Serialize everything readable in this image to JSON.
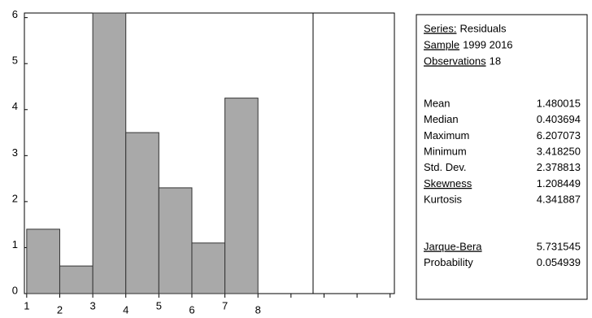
{
  "chart_data": {
    "type": "histogram",
    "bins": [
      1,
      2,
      3,
      4,
      5,
      6,
      7,
      8
    ],
    "values": [
      1.4,
      0.6,
      6.1,
      3.5,
      2.3,
      1.1,
      4.25
    ],
    "color": "#a9a9a9",
    "xlim": [
      0.93,
      12.13
    ],
    "xticks": [
      1,
      2,
      3,
      4,
      5,
      6,
      7,
      8
    ],
    "xminor_ticks": [
      9,
      10,
      11,
      12
    ],
    "ylim": [
      0,
      6.1
    ],
    "yticks": [
      0,
      1,
      2,
      3,
      4,
      5,
      6
    ]
  },
  "stats": {
    "header": [
      {
        "label": "Series:",
        "value": "Residuals"
      },
      {
        "label": "Sample",
        "value": "1999 2016"
      },
      {
        "label": "Observations",
        "value": "18"
      }
    ],
    "rows": [
      {
        "label": "Mean",
        "value": "1.480015"
      },
      {
        "label": "Median",
        "value": "0.403694"
      },
      {
        "label": "Maximum",
        "value": "6.207073"
      },
      {
        "label": "Minimum",
        "value": "3.418250"
      },
      {
        "label": "Std. Dev.",
        "value": "2.378813"
      },
      {
        "label": "Skewness",
        "value": "1.208449"
      },
      {
        "label": "Kurtosis",
        "value": "4.341887"
      }
    ],
    "tests": [
      {
        "label": "Jarque-Bera",
        "value": "5.731545"
      },
      {
        "label": "Probability",
        "value": "0.054939"
      }
    ]
  }
}
